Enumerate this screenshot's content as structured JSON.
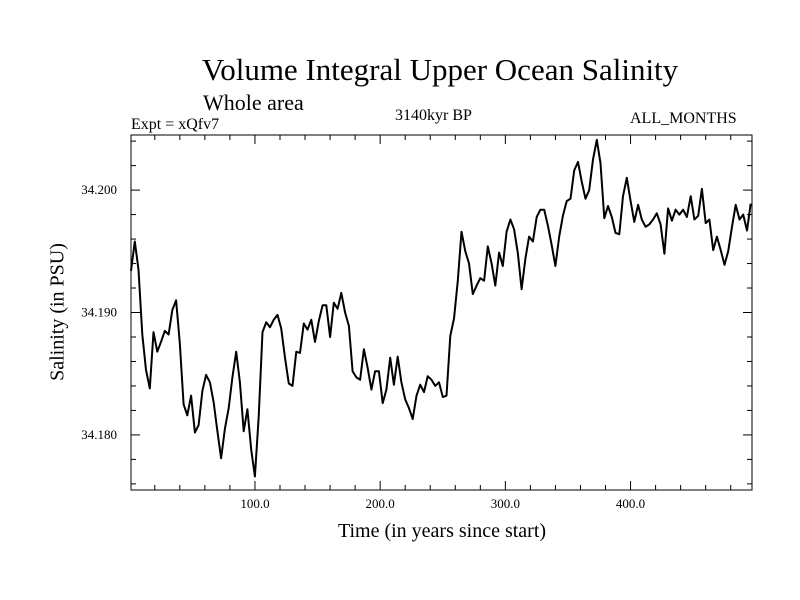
{
  "chart_data": {
    "type": "line",
    "title": "Volume Integral Upper Ocean Salinity",
    "subtitle": "Whole area",
    "annotations": {
      "experiment": "Expt = xQfv7",
      "period": "3140kyr BP",
      "months": "ALL_MONTHS"
    },
    "xlabel": "Time (in years since start)",
    "ylabel": "Salinity (in PSU)",
    "xlim": [
      1,
      497
    ],
    "ylim": [
      34.1755,
      34.2045
    ],
    "x_ticks": [
      100,
      200,
      300,
      400
    ],
    "x_tick_labels": [
      "100.0",
      "200.0",
      "300.0",
      "400.0"
    ],
    "y_ticks": [
      34.18,
      34.19,
      34.2
    ],
    "y_tick_labels": [
      "34.180",
      "34.190",
      "34.200"
    ],
    "x_minor_step": 20,
    "y_minor_step": 0.002,
    "series": [
      {
        "name": "Salinity",
        "x": [
          1,
          4,
          7,
          10,
          13,
          16,
          19,
          22,
          25,
          28,
          31,
          34,
          37,
          40,
          43,
          46,
          49,
          52,
          55,
          58,
          61,
          64,
          67,
          70,
          73,
          76,
          79,
          82,
          85,
          88,
          91,
          94,
          97,
          100,
          103,
          106,
          109,
          112,
          115,
          118,
          121,
          124,
          127,
          130,
          133,
          136,
          139,
          142,
          145,
          148,
          151,
          154,
          157,
          160,
          163,
          166,
          169,
          172,
          175,
          178,
          181,
          184,
          187,
          190,
          193,
          196,
          199,
          202,
          205,
          208,
          211,
          214,
          217,
          220,
          223,
          226,
          229,
          232,
          235,
          238,
          241,
          244,
          247,
          250,
          253,
          256,
          259,
          262,
          265,
          268,
          271,
          274,
          277,
          280,
          283,
          286,
          289,
          292,
          295,
          298,
          301,
          304,
          307,
          310,
          313,
          316,
          319,
          322,
          325,
          328,
          331,
          334,
          337,
          340,
          343,
          346,
          349,
          352,
          355,
          358,
          361,
          364,
          367,
          370,
          373,
          376,
          379,
          382,
          385,
          388,
          391,
          394,
          397,
          400,
          403,
          406,
          409,
          412,
          415,
          418,
          421,
          424,
          427,
          430,
          433,
          436,
          439,
          442,
          445,
          448,
          451,
          454,
          457,
          460,
          463,
          466,
          469,
          472,
          475,
          478,
          481,
          484,
          487,
          490,
          493,
          496
        ],
        "values": [
          34.1934,
          34.1958,
          34.1935,
          34.1882,
          34.1853,
          34.1838,
          34.1884,
          34.1868,
          34.1876,
          34.1885,
          34.1882,
          34.1902,
          34.191,
          34.1875,
          34.1825,
          34.1816,
          34.1832,
          34.1802,
          34.1808,
          34.1836,
          34.1849,
          34.1843,
          34.1827,
          34.1803,
          34.1781,
          34.1805,
          34.1822,
          34.1847,
          34.1868,
          34.1843,
          34.1803,
          34.1821,
          34.1788,
          34.1766,
          34.1815,
          34.1884,
          34.1892,
          34.1888,
          34.1894,
          34.1898,
          34.1887,
          34.1863,
          34.1842,
          34.184,
          34.1868,
          34.1867,
          34.1891,
          34.1886,
          34.1894,
          34.1876,
          34.1893,
          34.1906,
          34.1906,
          34.188,
          34.1908,
          34.1903,
          34.1916,
          34.19,
          34.1889,
          34.1852,
          34.1847,
          34.1845,
          34.187,
          34.1855,
          34.1837,
          34.1852,
          34.1852,
          34.1826,
          34.1837,
          34.1863,
          34.1841,
          34.1864,
          34.1843,
          34.1829,
          34.1822,
          34.1813,
          34.1832,
          34.1841,
          34.1835,
          34.1848,
          34.1845,
          34.184,
          34.1843,
          34.1831,
          34.1832,
          34.1881,
          34.1895,
          34.1926,
          34.1966,
          34.195,
          34.194,
          34.1915,
          34.1922,
          34.1928,
          34.1926,
          34.1954,
          34.194,
          34.1922,
          34.1949,
          34.1938,
          34.1966,
          34.1976,
          34.1968,
          34.1948,
          34.1919,
          34.1944,
          34.1962,
          34.1958,
          34.1978,
          34.1984,
          34.1984,
          34.1971,
          34.1955,
          34.1938,
          34.1962,
          34.1979,
          34.1991,
          34.1993,
          34.2016,
          34.2023,
          34.2007,
          34.1993,
          34.2,
          34.2025,
          34.2041,
          34.2022,
          34.1977,
          34.1987,
          34.1978,
          34.1965,
          34.1964,
          34.1995,
          34.201,
          34.1991,
          34.1974,
          34.1988,
          34.1976,
          34.197,
          34.1972,
          34.1976,
          34.1981,
          34.1972,
          34.1948,
          34.1985,
          34.1975,
          34.1984,
          34.198,
          34.1984,
          34.1978,
          34.1995,
          34.1976,
          34.1979,
          34.2001,
          34.1973,
          34.1976,
          34.1951,
          34.1962,
          34.1951,
          34.1939,
          34.195,
          34.197,
          34.1988,
          34.1976,
          34.198,
          34.1967,
          34.1989
        ]
      }
    ]
  }
}
